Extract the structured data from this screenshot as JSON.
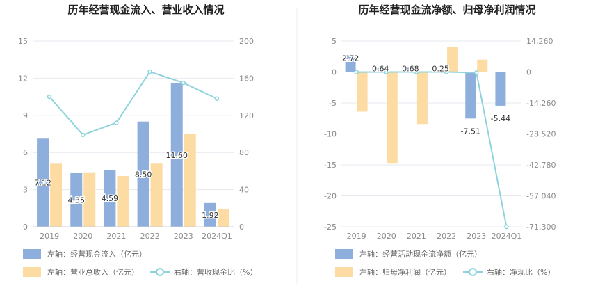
{
  "chart_data": [
    {
      "type": "bar",
      "title": "历年经营现金流入、营业收入情况",
      "categories": [
        "2019",
        "2020",
        "2021",
        "2022",
        "2023",
        "2024Q1"
      ],
      "ylim_left": [
        0,
        15
      ],
      "yticks_left": [
        0,
        3,
        6,
        9,
        12,
        15
      ],
      "ylim_right": [
        0,
        200
      ],
      "yticks_right": [
        0,
        40,
        80,
        120,
        160,
        200
      ],
      "series": [
        {
          "name": "左轴：经营现金流入（亿元）",
          "kind": "bar",
          "axis": "left",
          "color": "#8eaedc",
          "values": [
            7.12,
            4.35,
            4.59,
            8.5,
            11.6,
            1.92
          ],
          "labels": [
            "7.12",
            "4.35",
            "4.59",
            "8.50",
            "11.60",
            "1.92"
          ]
        },
        {
          "name": "左轴：营业总收入（亿元）",
          "kind": "bar",
          "axis": "left",
          "color": "#fcdca3",
          "values": [
            5.1,
            4.4,
            4.1,
            5.1,
            7.5,
            1.4
          ]
        },
        {
          "name": "右轴：营收现金比（%）",
          "kind": "line",
          "axis": "right",
          "color": "#8dd3dc",
          "values": [
            140,
            99,
            112,
            167,
            155,
            138
          ]
        }
      ]
    },
    {
      "type": "bar",
      "title": "历年经营现金流净额、归母净利润情况",
      "categories": [
        "2019",
        "2020",
        "2021",
        "2022",
        "2023",
        "2024Q1"
      ],
      "ylim_left": [
        -25,
        5
      ],
      "yticks_left": [
        -25,
        -20,
        -15,
        -10,
        -5,
        0,
        5
      ],
      "ylim_right": [
        -71300,
        14260
      ],
      "yticks_right": [
        -71300,
        -57040,
        -42780,
        -28520,
        -14260,
        0,
        14260
      ],
      "yticklabels_right": [
        "-71,300",
        "-57,040",
        "-42,780",
        "-28,520",
        "-14,260",
        "0",
        "14,260"
      ],
      "series": [
        {
          "name": "左轴：经营活动现金流净额（亿元）",
          "kind": "bar",
          "axis": "left",
          "color": "#8eaedc",
          "values": [
            2.72,
            0.64,
            0.68,
            0.25,
            -7.51,
            -5.44
          ],
          "labels": [
            "2.72",
            "0.64",
            "0.68",
            "0.25",
            "-7.51",
            "-5.44"
          ]
        },
        {
          "name": "左轴：归母净利润（亿元）",
          "kind": "bar",
          "axis": "left",
          "color": "#fcdca3",
          "values": [
            -6.4,
            -14.8,
            -8.4,
            4.0,
            2.0,
            0.0
          ]
        },
        {
          "name": "右轴：净现比（%）",
          "kind": "line",
          "axis": "right",
          "color": "#8dd3dc",
          "values": [
            -40,
            -5,
            -8,
            5,
            -300,
            -71300
          ]
        }
      ]
    }
  ]
}
